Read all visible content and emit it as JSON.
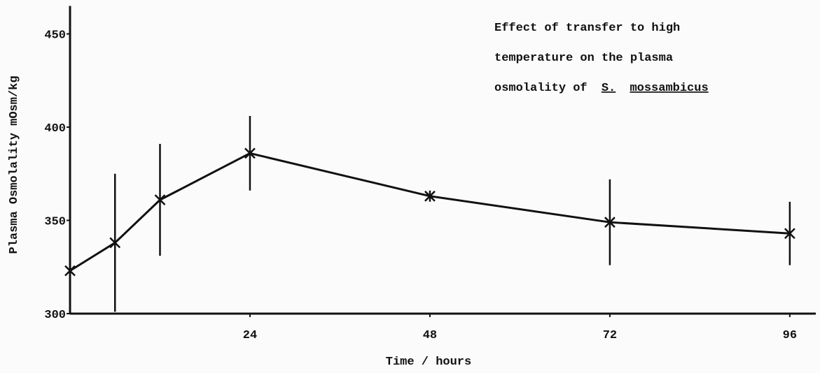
{
  "chart_data": {
    "type": "line",
    "title_lines": [
      "Effect of transfer to high",
      "temperature on the plasma"
    ],
    "title_last_line": [
      "osmolality of",
      "S.",
      "mossambicus"
    ],
    "xlabel": "Time / hours",
    "ylabel": "Plasma Osmolality  mOsm/kg",
    "x": [
      0,
      6,
      12,
      24,
      48,
      72,
      96
    ],
    "series": [
      {
        "name": "Plasma osmolality",
        "color": "#111111",
        "values": [
          323,
          338,
          361,
          386,
          363,
          349,
          343
        ],
        "errors": [
          7,
          37,
          30,
          20,
          3,
          23,
          17
        ]
      }
    ],
    "xlim": [
      0,
      99
    ],
    "xticks": [
      24,
      48,
      72,
      96
    ],
    "ylim": [
      300,
      465
    ],
    "yticks": [
      300,
      350,
      400,
      450
    ]
  }
}
